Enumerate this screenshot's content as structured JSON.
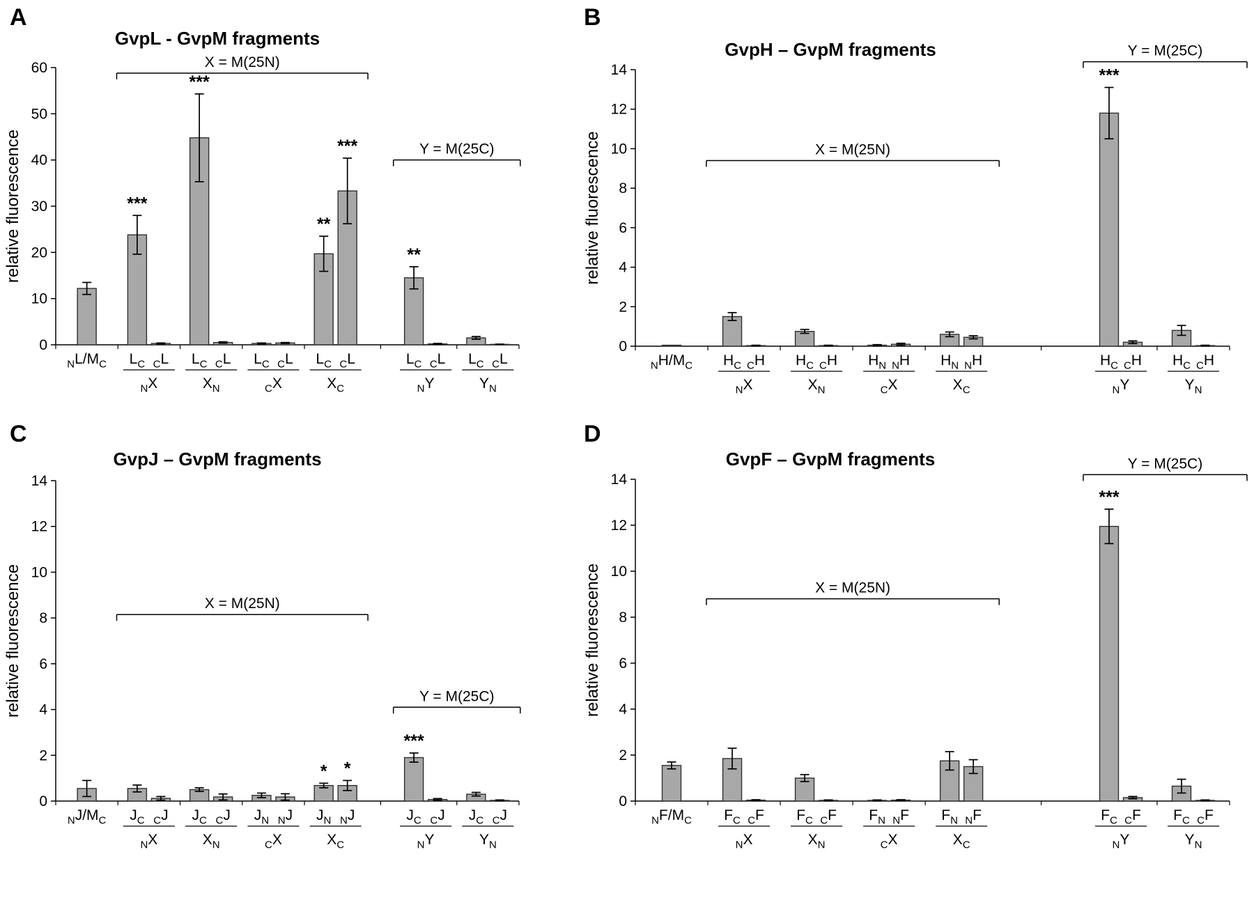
{
  "figure": {
    "background": "#ffffff",
    "bar_fill": "#a8a8a8",
    "bar_stroke": "#303030",
    "axis_color": "#000000",
    "panel_letters": [
      "A",
      "B",
      "C",
      "D"
    ]
  },
  "chart_data": [
    {
      "type": "bar",
      "panel": "A",
      "title": "GvpL - GvpM fragments",
      "xlabel": "",
      "ylabel": "relative fluorescence",
      "ylim": [
        0,
        60
      ],
      "ytick_step": 10,
      "grid": false,
      "brackets": [
        {
          "label": "X = M(25N)",
          "from_group": 1,
          "to_group": 4,
          "y": 58.8,
          "extend_right": false
        },
        {
          "label": "Y = M(25C)",
          "from_group": 5,
          "to_group": 6,
          "y": 40,
          "extend_right": false
        }
      ],
      "groups": [
        {
          "label": "{N}L/M{C}",
          "bars": [
            {
              "label": "",
              "value": 12.2,
              "err": 1.3,
              "sig": ""
            }
          ]
        },
        {
          "label": "{N}X",
          "bars": [
            {
              "label": "L{C}",
              "value": 23.8,
              "err": 4.2,
              "sig": "***"
            },
            {
              "label": "{C}L",
              "value": 0.3,
              "err": 0.1,
              "sig": ""
            }
          ]
        },
        {
          "label": "X{N}",
          "bars": [
            {
              "label": "L{C}",
              "value": 44.8,
              "err": 9.5,
              "sig": "***"
            },
            {
              "label": "{C}L",
              "value": 0.5,
              "err": 0.15,
              "sig": ""
            }
          ]
        },
        {
          "label": "{C}X",
          "bars": [
            {
              "label": "L{C}",
              "value": 0.3,
              "err": 0.1,
              "sig": ""
            },
            {
              "label": "{C}L",
              "value": 0.4,
              "err": 0.1,
              "sig": ""
            }
          ]
        },
        {
          "label": "X{C}",
          "bars": [
            {
              "label": "L{C}",
              "value": 19.7,
              "err": 3.8,
              "sig": "**"
            },
            {
              "label": "{C}L",
              "value": 33.3,
              "err": 7.1,
              "sig": "***"
            }
          ]
        },
        {
          "label": "{N}Y",
          "bars": [
            {
              "label": "L{C}",
              "value": 14.5,
              "err": 2.4,
              "sig": "**"
            },
            {
              "label": "{C}L",
              "value": 0.2,
              "err": 0.1,
              "sig": ""
            }
          ]
        },
        {
          "label": "Y{N}",
          "bars": [
            {
              "label": "L{C}",
              "value": 1.5,
              "err": 0.3,
              "sig": ""
            },
            {
              "label": "{C}L",
              "value": 0.1,
              "err": 0.05,
              "sig": ""
            }
          ]
        }
      ]
    },
    {
      "type": "bar",
      "panel": "B",
      "title": "GvpH – GvpM fragments",
      "xlabel": "",
      "ylabel": "relative fluorescence",
      "ylim": [
        0,
        14
      ],
      "ytick_step": 2,
      "grid": false,
      "brackets": [
        {
          "label": "X = M(25N)",
          "from_group": 1,
          "to_group": 4,
          "y": 9.4,
          "extend_right": false
        },
        {
          "label": "Y = M(25C)",
          "from_group": 5,
          "to_group": 6,
          "y": 14.4,
          "extend_right": true
        }
      ],
      "groups": [
        {
          "label": "{N}H/M{C}",
          "bars": [
            {
              "label": "",
              "value": 0.05,
              "err": 0,
              "sig": ""
            }
          ]
        },
        {
          "label": "{N}X",
          "bars": [
            {
              "label": "H{C}",
              "value": 1.5,
              "err": 0.2,
              "sig": ""
            },
            {
              "label": "{C}H",
              "value": 0.03,
              "err": 0.02,
              "sig": ""
            }
          ]
        },
        {
          "label": "X{N}",
          "bars": [
            {
              "label": "H{C}",
              "value": 0.75,
              "err": 0.1,
              "sig": ""
            },
            {
              "label": "{C}H",
              "value": 0.03,
              "err": 0.02,
              "sig": ""
            }
          ]
        },
        {
          "label": "{C}X",
          "bars": [
            {
              "label": "H{N}",
              "value": 0.05,
              "err": 0.03,
              "sig": ""
            },
            {
              "label": "{N}H",
              "value": 0.1,
              "err": 0.05,
              "sig": ""
            }
          ]
        },
        {
          "label": "X{C}",
          "bars": [
            {
              "label": "H{N}",
              "value": 0.6,
              "err": 0.12,
              "sig": ""
            },
            {
              "label": "{N}H",
              "value": 0.45,
              "err": 0.08,
              "sig": ""
            }
          ]
        },
        {
          "label": "{N}Y",
          "bars": [
            {
              "label": "H{C}",
              "value": 11.8,
              "err": 1.3,
              "sig": "***"
            },
            {
              "label": "{C}H",
              "value": 0.2,
              "err": 0.07,
              "sig": ""
            }
          ]
        },
        {
          "label": "Y{N}",
          "bars": [
            {
              "label": "H{C}",
              "value": 0.8,
              "err": 0.25,
              "sig": ""
            },
            {
              "label": "{C}H",
              "value": 0.03,
              "err": 0.02,
              "sig": ""
            }
          ]
        }
      ]
    },
    {
      "type": "bar",
      "panel": "C",
      "title": "GvpJ – GvpM fragments",
      "xlabel": "",
      "ylabel": "relative fluorescence",
      "ylim": [
        0,
        14
      ],
      "ytick_step": 2,
      "grid": false,
      "brackets": [
        {
          "label": "X = M(25N)",
          "from_group": 1,
          "to_group": 4,
          "y": 8.15,
          "extend_right": false
        },
        {
          "label": "Y = M(25C)",
          "from_group": 5,
          "to_group": 6,
          "y": 4.1,
          "extend_right": false
        }
      ],
      "groups": [
        {
          "label": "{N}J/M{C}",
          "bars": [
            {
              "label": "",
              "value": 0.55,
              "err": 0.35,
              "sig": ""
            }
          ]
        },
        {
          "label": "{N}X",
          "bars": [
            {
              "label": "J{C}",
              "value": 0.55,
              "err": 0.15,
              "sig": ""
            },
            {
              "label": "{C}J",
              "value": 0.12,
              "err": 0.08,
              "sig": ""
            }
          ]
        },
        {
          "label": "X{N}",
          "bars": [
            {
              "label": "J{C}",
              "value": 0.5,
              "err": 0.08,
              "sig": ""
            },
            {
              "label": "{C}J",
              "value": 0.18,
              "err": 0.13,
              "sig": ""
            }
          ]
        },
        {
          "label": "{C}X",
          "bars": [
            {
              "label": "J{N}",
              "value": 0.25,
              "err": 0.1,
              "sig": ""
            },
            {
              "label": "{N}J",
              "value": 0.18,
              "err": 0.14,
              "sig": ""
            }
          ]
        },
        {
          "label": "X{C}",
          "bars": [
            {
              "label": "J{N}",
              "value": 0.68,
              "err": 0.1,
              "sig": "*"
            },
            {
              "label": "{N}J",
              "value": 0.68,
              "err": 0.22,
              "sig": "*"
            }
          ]
        },
        {
          "label": "{N}Y",
          "bars": [
            {
              "label": "J{C}",
              "value": 1.9,
              "err": 0.2,
              "sig": "***"
            },
            {
              "label": "{C}J",
              "value": 0.07,
              "err": 0.04,
              "sig": ""
            }
          ]
        },
        {
          "label": "Y{N}",
          "bars": [
            {
              "label": "J{C}",
              "value": 0.3,
              "err": 0.08,
              "sig": ""
            },
            {
              "label": "{C}J",
              "value": 0.03,
              "err": 0.02,
              "sig": ""
            }
          ]
        }
      ]
    },
    {
      "type": "bar",
      "panel": "D",
      "title": "GvpF – GvpM fragments",
      "xlabel": "",
      "ylabel": "relative fluorescence",
      "ylim": [
        0,
        14
      ],
      "ytick_step": 2,
      "grid": false,
      "brackets": [
        {
          "label": "X = M(25N)",
          "from_group": 1,
          "to_group": 4,
          "y": 8.8,
          "extend_right": false
        },
        {
          "label": "Y = M(25C)",
          "from_group": 5,
          "to_group": 6,
          "y": 14.2,
          "extend_right": true
        }
      ],
      "groups": [
        {
          "label": "{N}F/M{C}",
          "bars": [
            {
              "label": "",
              "value": 1.55,
              "err": 0.15,
              "sig": ""
            }
          ]
        },
        {
          "label": "{N}X",
          "bars": [
            {
              "label": "F{C}",
              "value": 1.85,
              "err": 0.45,
              "sig": ""
            },
            {
              "label": "{C}F",
              "value": 0.04,
              "err": 0.02,
              "sig": ""
            }
          ]
        },
        {
          "label": "X{N}",
          "bars": [
            {
              "label": "F{C}",
              "value": 1.0,
              "err": 0.15,
              "sig": ""
            },
            {
              "label": "{C}F",
              "value": 0.03,
              "err": 0.02,
              "sig": ""
            }
          ]
        },
        {
          "label": "{C}X",
          "bars": [
            {
              "label": "F{N}",
              "value": 0.03,
              "err": 0.02,
              "sig": ""
            },
            {
              "label": "{N}F",
              "value": 0.04,
              "err": 0.02,
              "sig": ""
            }
          ]
        },
        {
          "label": "X{C}",
          "bars": [
            {
              "label": "F{N}",
              "value": 1.75,
              "err": 0.4,
              "sig": ""
            },
            {
              "label": "{N}F",
              "value": 1.5,
              "err": 0.3,
              "sig": ""
            }
          ]
        },
        {
          "label": "{N}Y",
          "bars": [
            {
              "label": "F{C}",
              "value": 11.95,
              "err": 0.75,
              "sig": "***"
            },
            {
              "label": "{C}F",
              "value": 0.15,
              "err": 0.05,
              "sig": ""
            }
          ]
        },
        {
          "label": "Y{N}",
          "bars": [
            {
              "label": "F{C}",
              "value": 0.65,
              "err": 0.3,
              "sig": ""
            },
            {
              "label": "{C}F",
              "value": 0.03,
              "err": 0.02,
              "sig": ""
            }
          ]
        }
      ]
    }
  ]
}
